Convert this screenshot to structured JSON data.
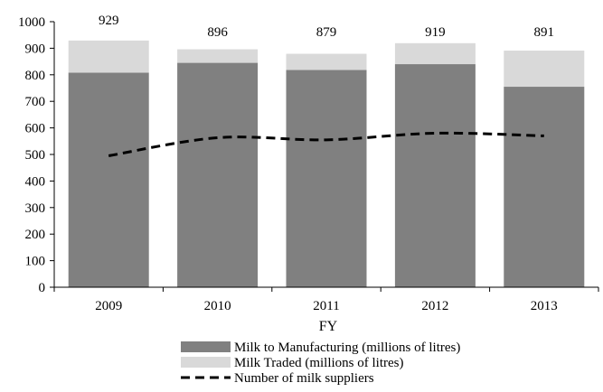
{
  "chart_data": {
    "type": "bar",
    "stacked": true,
    "categories": [
      "2009",
      "2010",
      "2011",
      "2012",
      "2013"
    ],
    "series": [
      {
        "name": "Milk to Manufacturing (millions of litres)",
        "kind": "bar",
        "color": "#808080",
        "values": [
          808,
          845,
          818,
          840,
          755
        ]
      },
      {
        "name": "Milk Traded (millions of litres)",
        "kind": "bar",
        "color": "#d9d9d9",
        "values": [
          121,
          51,
          61,
          79,
          136
        ]
      },
      {
        "name": "Number of milk suppliers",
        "kind": "line",
        "color": "#000000",
        "style": "dashed",
        "values": [
          495,
          563,
          555,
          580,
          570
        ]
      }
    ],
    "totals": [
      "929",
      "896",
      "879",
      "919",
      "891"
    ],
    "xlabel": "FY",
    "ylabel": "",
    "ylim": [
      0,
      1000
    ],
    "yticks": [
      "0",
      "100",
      "200",
      "300",
      "400",
      "500",
      "600",
      "700",
      "800",
      "900",
      "1000"
    ],
    "grid": false,
    "legend_position": "bottom"
  }
}
